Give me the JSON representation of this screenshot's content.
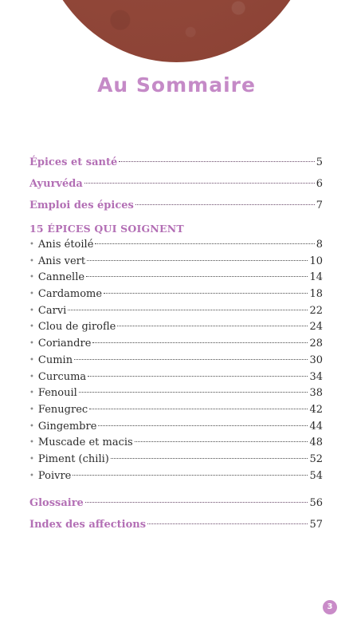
{
  "title": "Au Sommaire",
  "main_before": [
    {
      "label": "Épices et santé",
      "page": "5"
    },
    {
      "label": "Ayurvéda",
      "page": "6"
    },
    {
      "label": "Emploi des épices",
      "page": "7"
    }
  ],
  "section_heading": "15 ÉPICES QUI SOIGNENT",
  "spices": [
    {
      "label": "Anis étoilé",
      "page": "8"
    },
    {
      "label": "Anis vert",
      "page": "10"
    },
    {
      "label": "Cannelle",
      "page": "14"
    },
    {
      "label": "Cardamome",
      "page": "18"
    },
    {
      "label": "Carvi",
      "page": "22"
    },
    {
      "label": "Clou de girofle",
      "page": "24"
    },
    {
      "label": "Coriandre",
      "page": "28"
    },
    {
      "label": "Cumin",
      "page": "30"
    },
    {
      "label": "Curcuma",
      "page": "34"
    },
    {
      "label": "Fenouil",
      "page": "38"
    },
    {
      "label": "Fenugrec",
      "page": "42"
    },
    {
      "label": "Gingembre",
      "page": "44"
    },
    {
      "label": "Muscade et macis",
      "page": "48"
    },
    {
      "label": "Piment (chili)",
      "page": "52"
    },
    {
      "label": "Poivre",
      "page": "54"
    }
  ],
  "main_after": [
    {
      "label": "Glossaire",
      "page": "56"
    },
    {
      "label": "Index des affections",
      "page": "57"
    }
  ],
  "page_number": "3",
  "colors": {
    "accent": "#b36fb5",
    "banner": "#92483a"
  }
}
